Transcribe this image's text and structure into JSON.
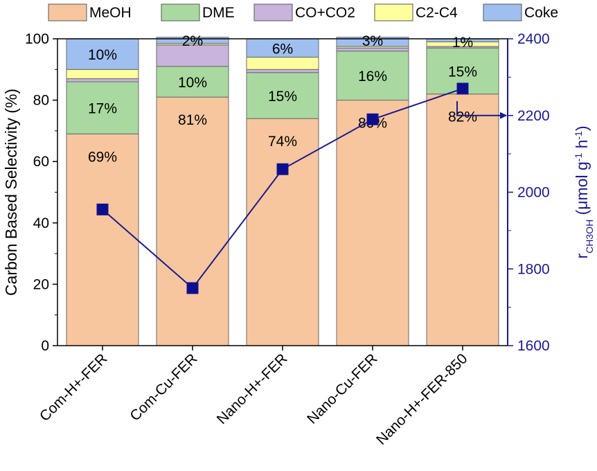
{
  "chart_data": {
    "type": "bar",
    "stacked": true,
    "categories": [
      "Com-H+-FER",
      "Com-Cu-FER",
      "Nano-H+-FER",
      "Nano-Cu-FER",
      "Nano-H+-FER-850"
    ],
    "series": [
      {
        "name": "MeOH",
        "color": "#f7c69f",
        "values": [
          69,
          81,
          74,
          80,
          82
        ],
        "labels": [
          "69%",
          "81%",
          "74%",
          "80%",
          "82%"
        ]
      },
      {
        "name": "DME",
        "color": "#a9d9a0",
        "values": [
          17,
          10,
          15,
          16,
          15
        ],
        "labels": [
          "17%",
          "10%",
          "15%",
          "16%",
          "15%"
        ]
      },
      {
        "name": "CO+CO2",
        "color": "#c8b4dc",
        "values": [
          1,
          7,
          1,
          1,
          0.5
        ]
      },
      {
        "name": "C2-C4",
        "color": "#ffff9e",
        "values": [
          3,
          0.5,
          4,
          0.5,
          1.5
        ]
      },
      {
        "name": "Coke",
        "color": "#9fbff0",
        "values": [
          10,
          2,
          6,
          3,
          1
        ],
        "labels": [
          "10%",
          "2%",
          "6%",
          "3%",
          "1%"
        ]
      }
    ],
    "ylabel": "Carbon Based Selectivity (%)",
    "ylim": [
      0,
      100
    ],
    "yticks": [
      0,
      20,
      40,
      60,
      80,
      100
    ],
    "secondary_axis": {
      "label_main": "r",
      "label_sub": "CH3OH",
      "label_rest": " (μmol g",
      "label_sup1": "-1",
      "label_mid": " h",
      "label_sup2": "-1",
      "label_end": ")",
      "ylim": [
        1600,
        2400
      ],
      "yticks": [
        1600,
        1800,
        2000,
        2200,
        2400
      ],
      "color": "#1a1a8c",
      "values": [
        1955,
        1750,
        2060,
        2190,
        2270
      ]
    },
    "legend_position": "top"
  }
}
